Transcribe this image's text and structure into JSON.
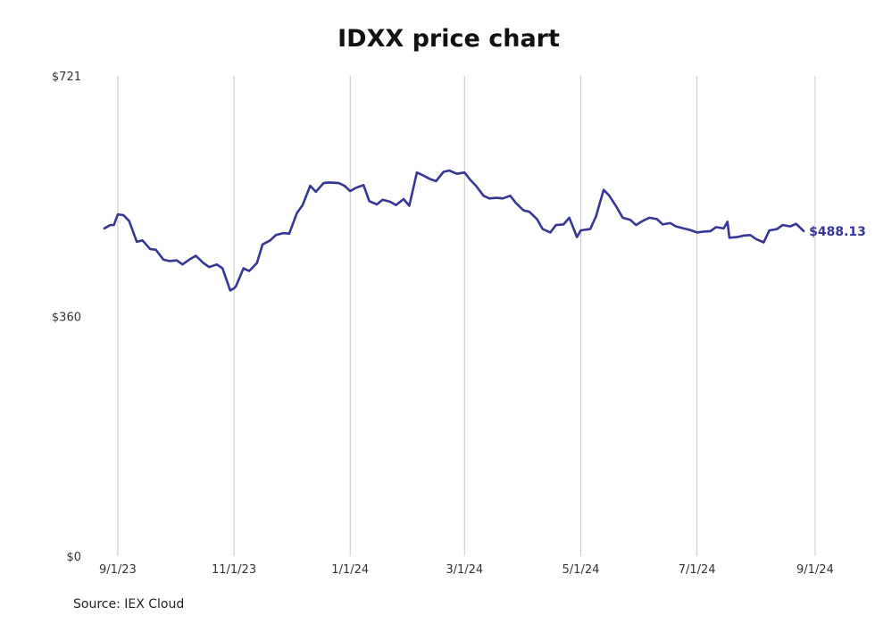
{
  "chart_data": {
    "type": "line",
    "title": "IDXX price chart",
    "xlabel": "",
    "ylabel": "",
    "ylim": [
      0,
      721
    ],
    "y_ticks": [
      {
        "value": 0,
        "label": "$0"
      },
      {
        "value": 360,
        "label": "$360"
      },
      {
        "value": 721,
        "label": "$721"
      }
    ],
    "x_range": [
      "2023-08-18",
      "2024-09-09"
    ],
    "x_ticks": [
      {
        "date": "2023-09-01",
        "label": "9/1/23"
      },
      {
        "date": "2023-11-01",
        "label": "11/1/23"
      },
      {
        "date": "2024-01-01",
        "label": "1/1/24"
      },
      {
        "date": "2024-03-01",
        "label": "3/1/24"
      },
      {
        "date": "2024-05-01",
        "label": "5/1/24"
      },
      {
        "date": "2024-07-01",
        "label": "7/1/24"
      },
      {
        "date": "2024-09-01",
        "label": "9/1/24"
      }
    ],
    "grid": {
      "vertical": true,
      "horizontal": false
    },
    "series": [
      {
        "color": "#363696",
        "last_value_label": "$488.13",
        "points": [
          [
            "2023-08-25",
            492
          ],
          [
            "2023-08-28",
            497
          ],
          [
            "2023-08-30",
            497
          ],
          [
            "2023-09-01",
            513
          ],
          [
            "2023-09-04",
            512
          ],
          [
            "2023-09-07",
            503
          ],
          [
            "2023-09-11",
            472
          ],
          [
            "2023-09-14",
            474
          ],
          [
            "2023-09-18",
            461
          ],
          [
            "2023-09-21",
            460
          ],
          [
            "2023-09-25",
            445
          ],
          [
            "2023-09-28",
            443
          ],
          [
            "2023-10-02",
            444
          ],
          [
            "2023-10-05",
            438
          ],
          [
            "2023-10-09",
            446
          ],
          [
            "2023-10-12",
            451
          ],
          [
            "2023-10-16",
            440
          ],
          [
            "2023-10-19",
            434
          ],
          [
            "2023-10-23",
            438
          ],
          [
            "2023-10-26",
            432
          ],
          [
            "2023-10-30",
            399
          ],
          [
            "2023-11-01",
            402
          ],
          [
            "2023-11-02",
            405
          ],
          [
            "2023-11-06",
            432
          ],
          [
            "2023-11-09",
            428
          ],
          [
            "2023-11-13",
            440
          ],
          [
            "2023-11-16",
            468
          ],
          [
            "2023-11-20",
            474
          ],
          [
            "2023-11-23",
            482
          ],
          [
            "2023-11-27",
            485
          ],
          [
            "2023-11-30",
            484
          ],
          [
            "2023-12-04",
            515
          ],
          [
            "2023-12-07",
            527
          ],
          [
            "2023-12-11",
            556
          ],
          [
            "2023-12-14",
            547
          ],
          [
            "2023-12-18",
            560
          ],
          [
            "2023-12-21",
            561
          ],
          [
            "2023-12-26",
            560
          ],
          [
            "2023-12-29",
            556
          ],
          [
            "2024-01-01",
            548
          ],
          [
            "2024-01-04",
            553
          ],
          [
            "2024-01-08",
            557
          ],
          [
            "2024-01-11",
            533
          ],
          [
            "2024-01-15",
            528
          ],
          [
            "2024-01-18",
            535
          ],
          [
            "2024-01-22",
            532
          ],
          [
            "2024-01-25",
            527
          ],
          [
            "2024-01-29",
            536
          ],
          [
            "2024-02-01",
            526
          ],
          [
            "2024-02-05",
            576
          ],
          [
            "2024-02-08",
            572
          ],
          [
            "2024-02-12",
            566
          ],
          [
            "2024-02-15",
            563
          ],
          [
            "2024-02-19",
            577
          ],
          [
            "2024-02-22",
            579
          ],
          [
            "2024-02-26",
            574
          ],
          [
            "2024-03-01",
            576
          ],
          [
            "2024-03-04",
            565
          ],
          [
            "2024-03-07",
            556
          ],
          [
            "2024-03-11",
            541
          ],
          [
            "2024-03-14",
            537
          ],
          [
            "2024-03-18",
            538
          ],
          [
            "2024-03-21",
            537
          ],
          [
            "2024-03-25",
            541
          ],
          [
            "2024-03-28",
            530
          ],
          [
            "2024-04-01",
            519
          ],
          [
            "2024-04-04",
            517
          ],
          [
            "2024-04-08",
            506
          ],
          [
            "2024-04-11",
            491
          ],
          [
            "2024-04-15",
            486
          ],
          [
            "2024-04-18",
            497
          ],
          [
            "2024-04-22",
            498
          ],
          [
            "2024-04-25",
            508
          ],
          [
            "2024-04-29",
            479
          ],
          [
            "2024-05-01",
            489
          ],
          [
            "2024-05-03",
            490
          ],
          [
            "2024-05-06",
            491
          ],
          [
            "2024-05-09",
            510
          ],
          [
            "2024-05-13",
            550
          ],
          [
            "2024-05-16",
            541
          ],
          [
            "2024-05-20",
            523
          ],
          [
            "2024-05-23",
            508
          ],
          [
            "2024-05-27",
            505
          ],
          [
            "2024-05-30",
            497
          ],
          [
            "2024-06-03",
            504
          ],
          [
            "2024-06-06",
            508
          ],
          [
            "2024-06-10",
            506
          ],
          [
            "2024-06-13",
            498
          ],
          [
            "2024-06-17",
            500
          ],
          [
            "2024-06-20",
            495
          ],
          [
            "2024-06-24",
            492
          ],
          [
            "2024-06-27",
            490
          ],
          [
            "2024-07-01",
            486
          ],
          [
            "2024-07-04",
            487
          ],
          [
            "2024-07-08",
            488
          ],
          [
            "2024-07-11",
            494
          ],
          [
            "2024-07-15",
            492
          ],
          [
            "2024-07-17",
            502
          ],
          [
            "2024-07-18",
            478
          ],
          [
            "2024-07-22",
            479
          ],
          [
            "2024-07-25",
            481
          ],
          [
            "2024-07-29",
            482
          ],
          [
            "2024-08-01",
            476
          ],
          [
            "2024-08-05",
            471
          ],
          [
            "2024-08-08",
            489
          ],
          [
            "2024-08-12",
            491
          ],
          [
            "2024-08-15",
            497
          ],
          [
            "2024-08-19",
            495
          ],
          [
            "2024-08-22",
            499
          ],
          [
            "2024-08-26",
            488.13
          ]
        ]
      }
    ]
  },
  "source": "Source: IEX Cloud"
}
